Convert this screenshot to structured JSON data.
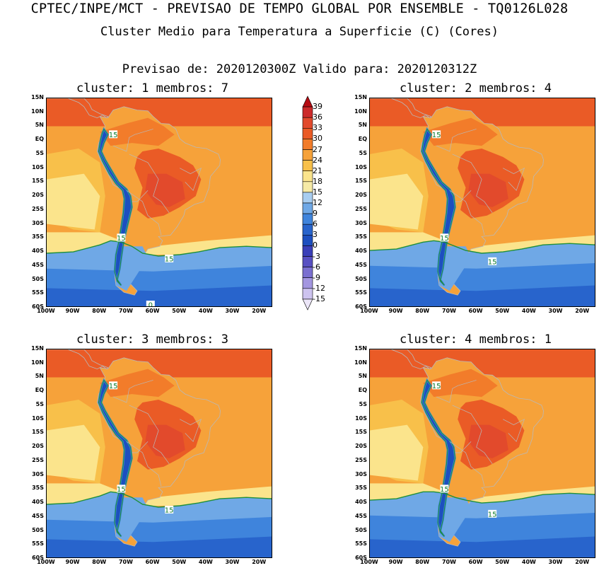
{
  "header": {
    "title_line1": "CPTEC/INPE/MCT - PREVISAO DE TEMPO GLOBAL POR ENSEMBLE - TQ0126L028",
    "title_line2": "Cluster Medio para Temperatura a Superficie (C) (Cores)",
    "title_line3": "Previsao de: 2020120300Z    Valido para: 2020120312Z"
  },
  "panels": [
    {
      "title": "cluster: 1  membros: 7",
      "contour_labels": [
        "15",
        "15",
        "15",
        "0"
      ]
    },
    {
      "title": "cluster: 2  membros: 4",
      "contour_labels": [
        "15",
        "15",
        "15"
      ]
    },
    {
      "title": "cluster: 3  membros: 3",
      "contour_labels": [
        "15",
        "15",
        "15"
      ]
    },
    {
      "title": "cluster: 4  membros: 1",
      "contour_labels": [
        "15",
        "15",
        "15"
      ]
    }
  ],
  "lat_labels": [
    "15N",
    "10N",
    "5N",
    "EQ",
    "5S",
    "10S",
    "15S",
    "20S",
    "25S",
    "30S",
    "35S",
    "40S",
    "45S",
    "50S",
    "55S",
    "60S"
  ],
  "lon_labels": [
    "100W",
    "90W",
    "80W",
    "70W",
    "60W",
    "50W",
    "40W",
    "30W",
    "20W"
  ],
  "colorbar": {
    "labels": [
      "39",
      "36",
      "33",
      "30",
      "27",
      "24",
      "21",
      "18",
      "15",
      "12",
      "9",
      "6",
      "3",
      "0",
      "-3",
      "-6",
      "-9",
      "-12",
      "-15"
    ],
    "colors": [
      "#b50b12",
      "#cc2a2a",
      "#e24a2c",
      "#ea5b26",
      "#f27c2a",
      "#f6a23a",
      "#f8c04a",
      "#fbe48c",
      "#f6eaa6",
      "#a8cdf0",
      "#6fa8e6",
      "#3f84dc",
      "#2864cc",
      "#1d4fbf",
      "#3a3fb8",
      "#5850c2",
      "#7a6fd0",
      "#a396e0",
      "#cdc3ef",
      "#ece6f8"
    ]
  }
}
